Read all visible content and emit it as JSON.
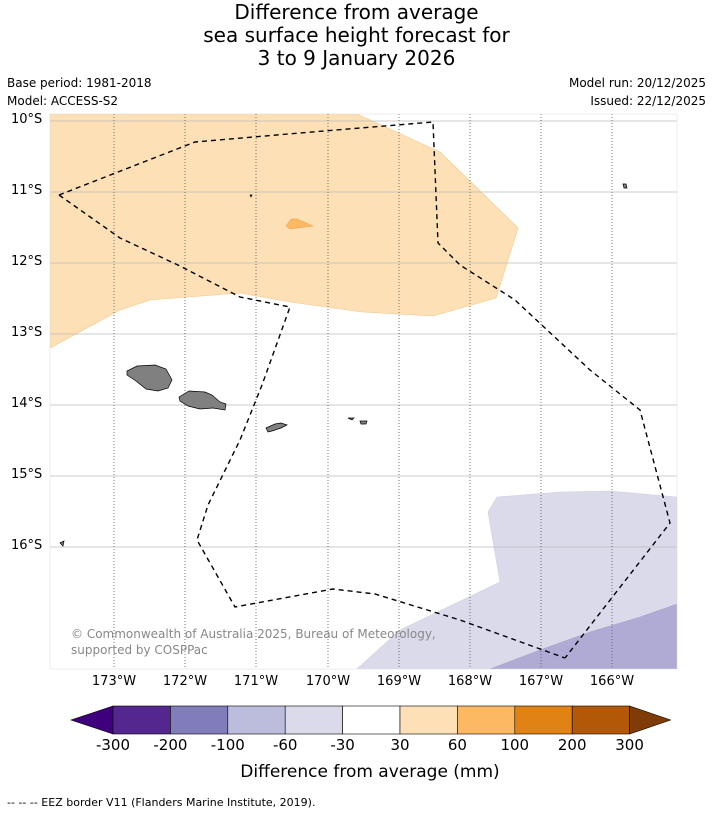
{
  "title": {
    "line1": "Difference from average",
    "line2": "sea surface height forecast for",
    "line3": "3 to 9 January 2026"
  },
  "meta": {
    "base_period": "Base period: 1981-2018",
    "model": "Model: ACCESS-S2",
    "model_run": "Model run: 20/12/2025",
    "issued": "Issued: 22/12/2025"
  },
  "map": {
    "lat_ticks": [
      "10°S",
      "11°S",
      "12°S",
      "13°S",
      "14°S",
      "15°S",
      "16°S"
    ],
    "lon_ticks": [
      "173°W",
      "172°W",
      "171°W",
      "170°W",
      "169°W",
      "168°W",
      "167°W",
      "166°W"
    ],
    "copyright": "© Commonwealth of Australia 2025, Bureau of Meteorology, supported by COSPPac"
  },
  "colorbar": {
    "title": "Difference from average (mm)",
    "labels": [
      "-300",
      "-200",
      "-100",
      "-60",
      "-30",
      "30",
      "60",
      "100",
      "200",
      "300"
    ],
    "colors": [
      "#3f007d",
      "#54278f",
      "#807dba",
      "#bcbddc",
      "#dadaeb",
      "#ffffff",
      "#fee0b6",
      "#fdb863",
      "#e08214",
      "#b35806",
      "#7f3b08"
    ]
  },
  "legend": {
    "eez": "--  --  -- EEZ border V11 (Flanders Marine Institute, 2019)."
  }
}
